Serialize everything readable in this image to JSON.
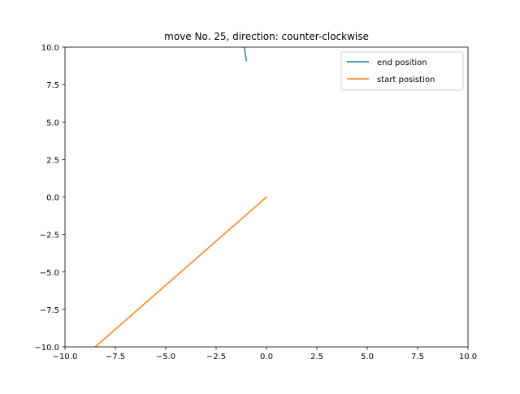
{
  "chart_data": {
    "type": "line",
    "title": "move No. 25, direction: counter-clockwise",
    "xlabel": "",
    "ylabel": "",
    "xlim": [
      -10,
      10
    ],
    "ylim": [
      -10,
      10
    ],
    "xticks": [
      -10,
      -7.5,
      -5,
      -2.5,
      0,
      2.5,
      5,
      7.5,
      10
    ],
    "yticks": [
      -10,
      -7.5,
      -5,
      -2.5,
      0,
      2.5,
      5,
      7.5,
      10
    ],
    "xtick_labels": [
      "−10.0",
      "−7.5",
      "−5.0",
      "−2.5",
      "0.0",
      "2.5",
      "5.0",
      "7.5",
      "10.0"
    ],
    "ytick_labels": [
      "−10.0",
      "−7.5",
      "−5.0",
      "−2.5",
      "0.0",
      "2.5",
      "5.0",
      "7.5",
      "10.0"
    ],
    "grid": false,
    "legend_position": "top-right",
    "series": [
      {
        "name": "end position",
        "color": "#1f77b4",
        "points": [
          [
            -1.1,
            10.0
          ],
          [
            -1.0,
            9.1
          ]
        ]
      },
      {
        "name": "start posistion",
        "color": "#ff7f0e",
        "points": [
          [
            0.0,
            0.0
          ],
          [
            -8.5,
            -10.0
          ]
        ]
      }
    ]
  }
}
